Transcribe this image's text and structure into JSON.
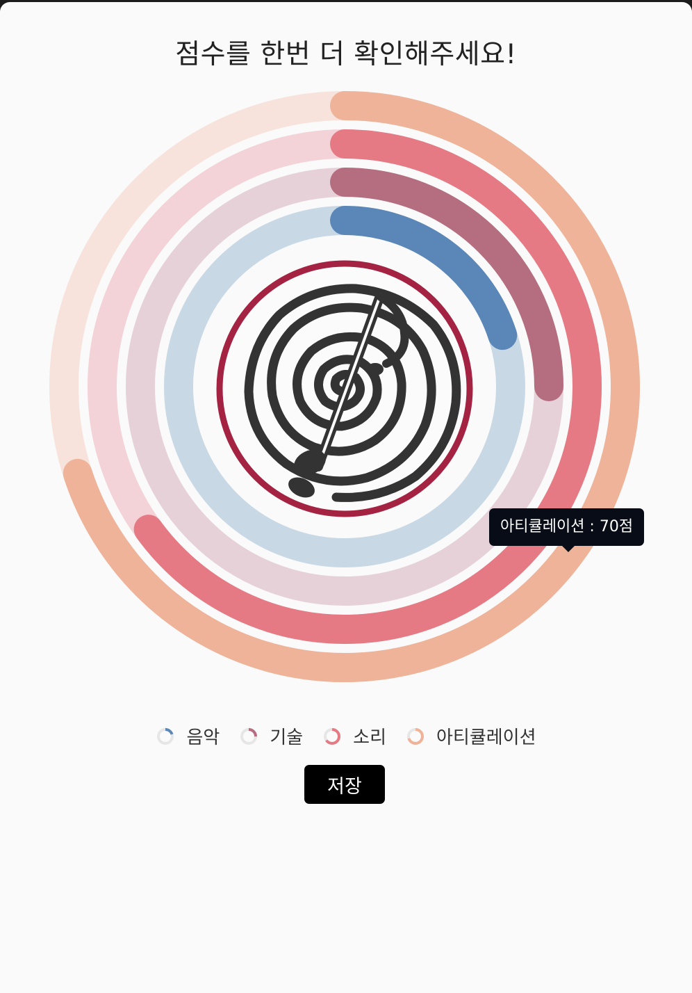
{
  "page": {
    "title": "점수를 한번 더 확인해주세요!",
    "save_label": "저장"
  },
  "tooltip": {
    "text": "아티큘레이션 :  70점"
  },
  "chart_data": {
    "type": "radialBar",
    "max": 100,
    "series": [
      {
        "name": "음악",
        "value": 20,
        "color": "#5b87b8",
        "track": "#c8d8e5"
      },
      {
        "name": "기술",
        "value": 25,
        "color": "#b46e80",
        "track": "#e6d1d8"
      },
      {
        "name": "소리",
        "value": 65,
        "color": "#e57a84",
        "track": "#f3d2d8"
      },
      {
        "name": "아티큘레이션",
        "value": 70,
        "color": "#eeb398",
        "track": "#f7e3dc"
      }
    ],
    "center_image": "music-note-spiral-logo",
    "center_ring_color": "#a52342"
  }
}
